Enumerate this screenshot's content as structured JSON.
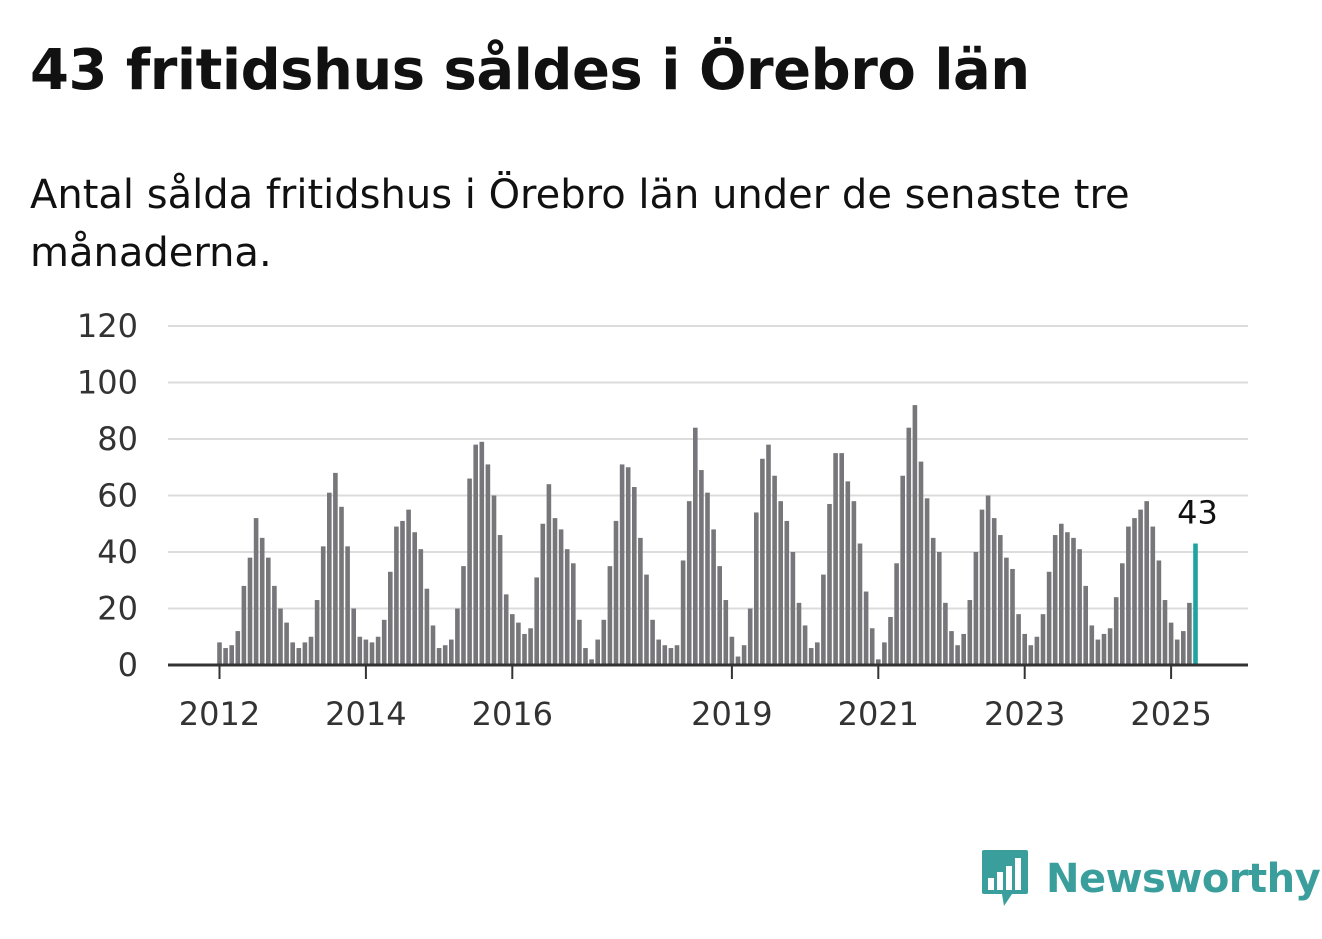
{
  "title": "43 fritidshus såldes i Örebro län",
  "subtitle": "Antal sålda fritidshus i Örebro län under de senaste tre månaderna.",
  "logo": {
    "text": "Newsworthy",
    "icon": "newsworthy-bar-chart-icon",
    "color": "#3a9f9c"
  },
  "chart_data": {
    "type": "bar",
    "ylim": [
      0,
      120
    ],
    "yticks": [
      "0",
      "20",
      "40",
      "60",
      "80",
      "100",
      "120"
    ],
    "grid": true,
    "bar_color": "#76767b",
    "highlight_color": "#1ea3a0",
    "xticks": [
      {
        "label": "2012",
        "index": 0
      },
      {
        "label": "2014",
        "index": 24
      },
      {
        "label": "2016",
        "index": 48
      },
      {
        "label": "2019",
        "index": 84
      },
      {
        "label": "2021",
        "index": 108
      },
      {
        "label": "2023",
        "index": 132
      },
      {
        "label": "2025",
        "index": 156
      }
    ],
    "values": [
      8,
      6,
      7,
      12,
      28,
      38,
      52,
      45,
      38,
      28,
      20,
      15,
      8,
      6,
      8,
      10,
      23,
      42,
      61,
      68,
      56,
      42,
      20,
      10,
      9,
      8,
      10,
      16,
      33,
      49,
      51,
      55,
      47,
      41,
      27,
      14,
      6,
      7,
      9,
      20,
      35,
      66,
      78,
      79,
      71,
      60,
      46,
      25,
      18,
      15,
      11,
      13,
      31,
      50,
      64,
      52,
      48,
      41,
      36,
      16,
      6,
      2,
      9,
      16,
      35,
      51,
      71,
      70,
      63,
      45,
      32,
      16,
      9,
      7,
      6,
      7,
      37,
      58,
      84,
      69,
      61,
      48,
      35,
      23,
      10,
      3,
      7,
      20,
      54,
      73,
      78,
      67,
      58,
      51,
      40,
      22,
      14,
      6,
      8,
      32,
      57,
      75,
      75,
      65,
      58,
      43,
      26,
      13,
      2,
      8,
      17,
      36,
      67,
      84,
      92,
      72,
      59,
      45,
      40,
      22,
      12,
      7,
      11,
      23,
      40,
      55,
      60,
      52,
      46,
      38,
      34,
      18,
      11,
      7,
      10,
      18,
      33,
      46,
      50,
      47,
      45,
      41,
      28,
      14,
      9,
      11,
      13,
      24,
      36,
      49,
      52,
      55,
      58,
      49,
      37,
      23,
      15,
      9,
      12,
      22,
      43
    ],
    "highlight_index": 160,
    "annotation": "43"
  }
}
